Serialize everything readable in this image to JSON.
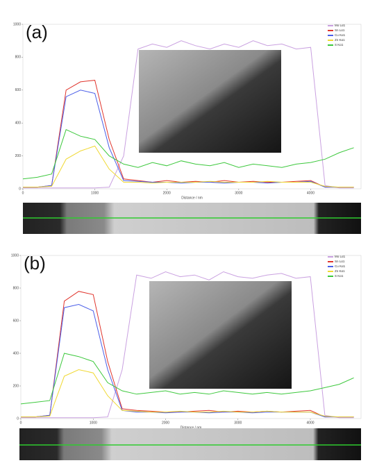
{
  "chart_data": [
    {
      "type": "line",
      "panel_label": "(a)",
      "x_label": "Distance / nm",
      "x": [
        0,
        200,
        400,
        600,
        800,
        1000,
        1200,
        1400,
        1600,
        1800,
        2000,
        2200,
        2400,
        2600,
        2800,
        3000,
        3200,
        3400,
        3600,
        3800,
        4000,
        4200,
        4400,
        4600
      ],
      "xlim": [
        0,
        4700
      ],
      "xticks": [
        0,
        1000,
        2000,
        3000,
        4000
      ],
      "ylim": [
        0,
        1000
      ],
      "yticks": [
        0,
        200,
        400,
        600,
        800,
        1000
      ],
      "series": [
        {
          "name": "Mo Lα1",
          "color": "#c9a0e0",
          "values": [
            5,
            5,
            5,
            5,
            5,
            5,
            10,
            200,
            850,
            880,
            860,
            900,
            870,
            850,
            880,
            860,
            900,
            870,
            880,
            850,
            860,
            20,
            5,
            5
          ]
        },
        {
          "name": "Sn Lα1",
          "color": "#e0342c",
          "values": [
            10,
            10,
            20,
            600,
            650,
            660,
            300,
            60,
            50,
            40,
            50,
            40,
            45,
            40,
            50,
            40,
            45,
            40,
            40,
            45,
            50,
            10,
            10,
            10
          ]
        },
        {
          "name": "Cu Kα1",
          "color": "#4a5ee8",
          "values": [
            10,
            10,
            20,
            560,
            600,
            580,
            250,
            50,
            45,
            40,
            40,
            35,
            40,
            40,
            35,
            40,
            40,
            35,
            40,
            40,
            45,
            10,
            10,
            10
          ]
        },
        {
          "name": "Zn Kα1",
          "color": "#f0d830",
          "values": [
            10,
            10,
            15,
            180,
            230,
            260,
            120,
            40,
            40,
            35,
            40,
            40,
            40,
            45,
            40,
            40,
            40,
            45,
            40,
            40,
            40,
            15,
            10,
            10
          ]
        },
        {
          "name": "S Kα1",
          "color": "#3cc83c",
          "values": [
            60,
            70,
            90,
            360,
            320,
            300,
            200,
            150,
            130,
            160,
            140,
            170,
            150,
            140,
            160,
            130,
            150,
            140,
            130,
            150,
            160,
            180,
            220,
            250
          ]
        }
      ]
    },
    {
      "type": "line",
      "panel_label": "(b)",
      "x_label": "Distance / nm",
      "x": [
        0,
        200,
        400,
        600,
        800,
        1000,
        1200,
        1400,
        1600,
        1800,
        2000,
        2200,
        2400,
        2600,
        2800,
        3000,
        3200,
        3400,
        3600,
        3800,
        4000,
        4200,
        4400,
        4600
      ],
      "xlim": [
        0,
        4700
      ],
      "xticks": [
        0,
        1000,
        2000,
        3000,
        4000
      ],
      "ylim": [
        0,
        1000
      ],
      "yticks": [
        0,
        200,
        400,
        600,
        800,
        1000
      ],
      "series": [
        {
          "name": "Mo Lα1",
          "color": "#c9a0e0",
          "values": [
            5,
            5,
            5,
            5,
            5,
            5,
            10,
            300,
            880,
            860,
            900,
            870,
            880,
            850,
            900,
            870,
            860,
            880,
            890,
            860,
            870,
            20,
            5,
            5
          ]
        },
        {
          "name": "Sn Lα1",
          "color": "#e0342c",
          "values": [
            10,
            10,
            20,
            720,
            780,
            760,
            350,
            60,
            50,
            45,
            40,
            40,
            45,
            50,
            40,
            45,
            40,
            45,
            40,
            45,
            50,
            10,
            10,
            10
          ]
        },
        {
          "name": "Cu Kα1",
          "color": "#4a5ee8",
          "values": [
            10,
            10,
            20,
            680,
            700,
            660,
            300,
            50,
            40,
            40,
            35,
            40,
            40,
            35,
            40,
            40,
            35,
            40,
            40,
            40,
            40,
            10,
            10,
            10
          ]
        },
        {
          "name": "Zn Kα1",
          "color": "#f0d830",
          "values": [
            10,
            10,
            15,
            260,
            300,
            280,
            140,
            50,
            45,
            40,
            40,
            45,
            40,
            40,
            45,
            40,
            40,
            45,
            40,
            40,
            40,
            15,
            10,
            10
          ]
        },
        {
          "name": "S Kα1",
          "color": "#3cc83c",
          "values": [
            90,
            100,
            110,
            400,
            380,
            350,
            220,
            170,
            150,
            160,
            170,
            150,
            160,
            150,
            170,
            160,
            150,
            160,
            150,
            160,
            170,
            190,
            210,
            250
          ]
        }
      ]
    }
  ]
}
